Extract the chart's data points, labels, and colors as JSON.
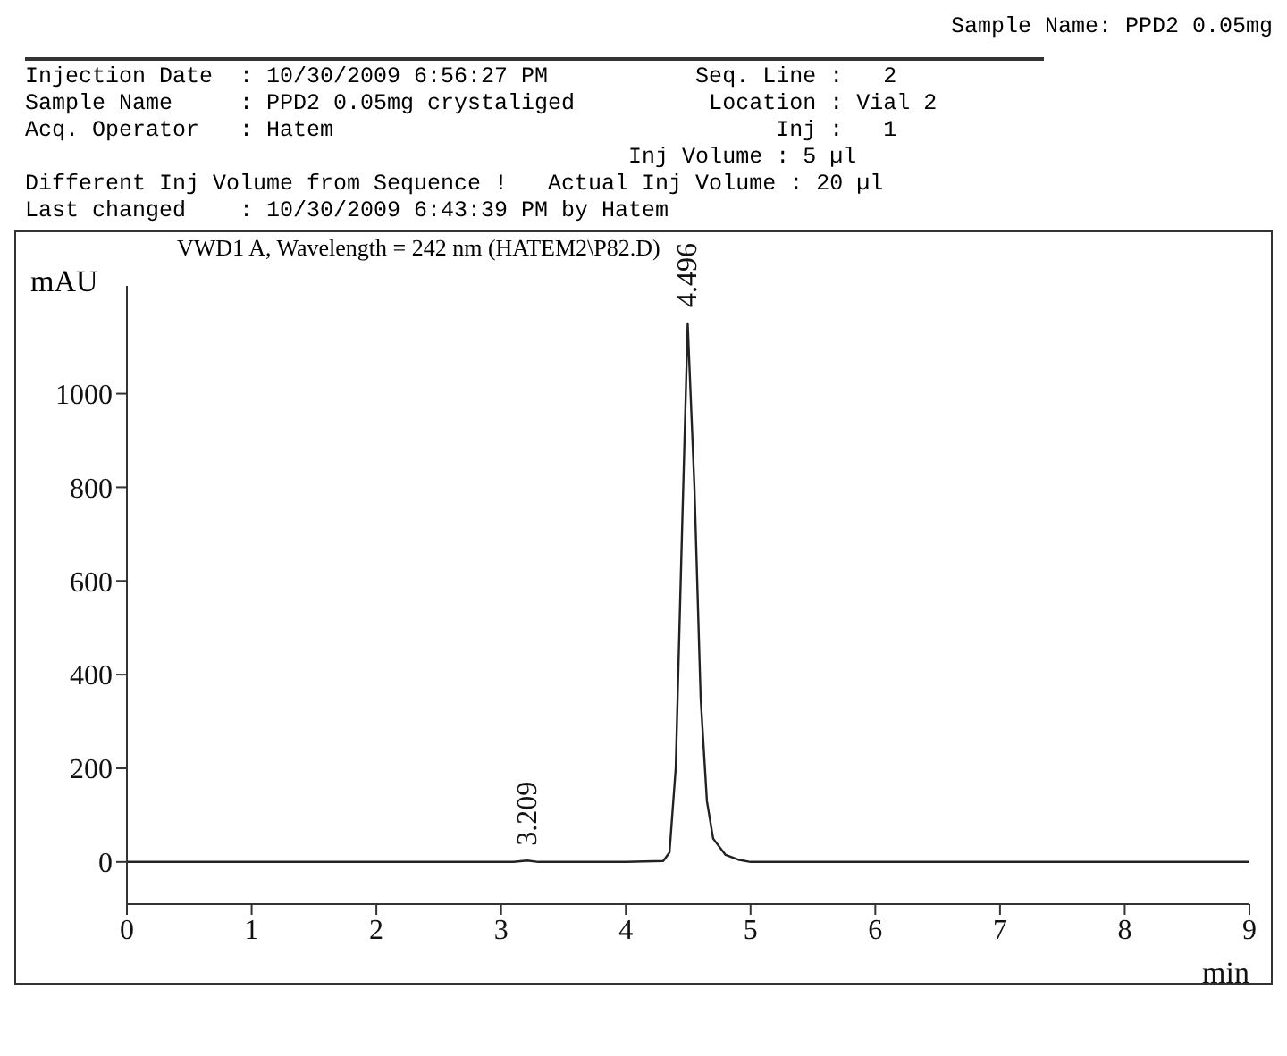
{
  "chart_data": {
    "type": "line",
    "title": "VWD1 A, Wavelength = 242 nm (HATEM2\\P82.D)",
    "xlabel": "min",
    "ylabel": "mAU",
    "annotations": [
      "Sample Name: PPD2 0.05mg",
      "Injection Date  : 10/30/2009 6:56:27 PM           Seq. Line :   2",
      "Sample Name     : PPD2 0.05mg crystaliged          Location : Vial 2",
      "Acq. Operator   : Hatem                                 Inj :   1",
      "                                             Inj Volume : 5 µl",
      "Different Inj Volume from Sequence !   Actual Inj Volume : 20 µl",
      "Last changed    : 10/30/2009 6:43:39 PM by Hatem",
      {
        "text": "3.209",
        "x": 3.209,
        "y": 0
      },
      {
        "text": "4.496",
        "x": 4.496,
        "y": 1150
      }
    ],
    "x": [
      0,
      1,
      2,
      3,
      3.1,
      3.209,
      3.3,
      4,
      4.3,
      4.35,
      4.4,
      4.45,
      4.496,
      4.55,
      4.6,
      4.65,
      4.7,
      4.8,
      4.9,
      5,
      6,
      7,
      8,
      9
    ],
    "series": [
      {
        "color": "#222222",
        "values": [
          0,
          0,
          0,
          0,
          0,
          3,
          0,
          0,
          2,
          20,
          200,
          700,
          1150,
          800,
          350,
          130,
          50,
          15,
          5,
          0,
          0,
          0,
          0,
          0
        ]
      }
    ],
    "xlim": [
      0,
      9
    ],
    "xticks": [
      0,
      1,
      2,
      3,
      4,
      5,
      6,
      7,
      8,
      9
    ],
    "ylim": [
      -90,
      1230
    ],
    "yticks": [
      0,
      200,
      400,
      600,
      800,
      1000
    ],
    "grid": false,
    "legend": false,
    "marker": "none",
    "line_style": "solid"
  }
}
